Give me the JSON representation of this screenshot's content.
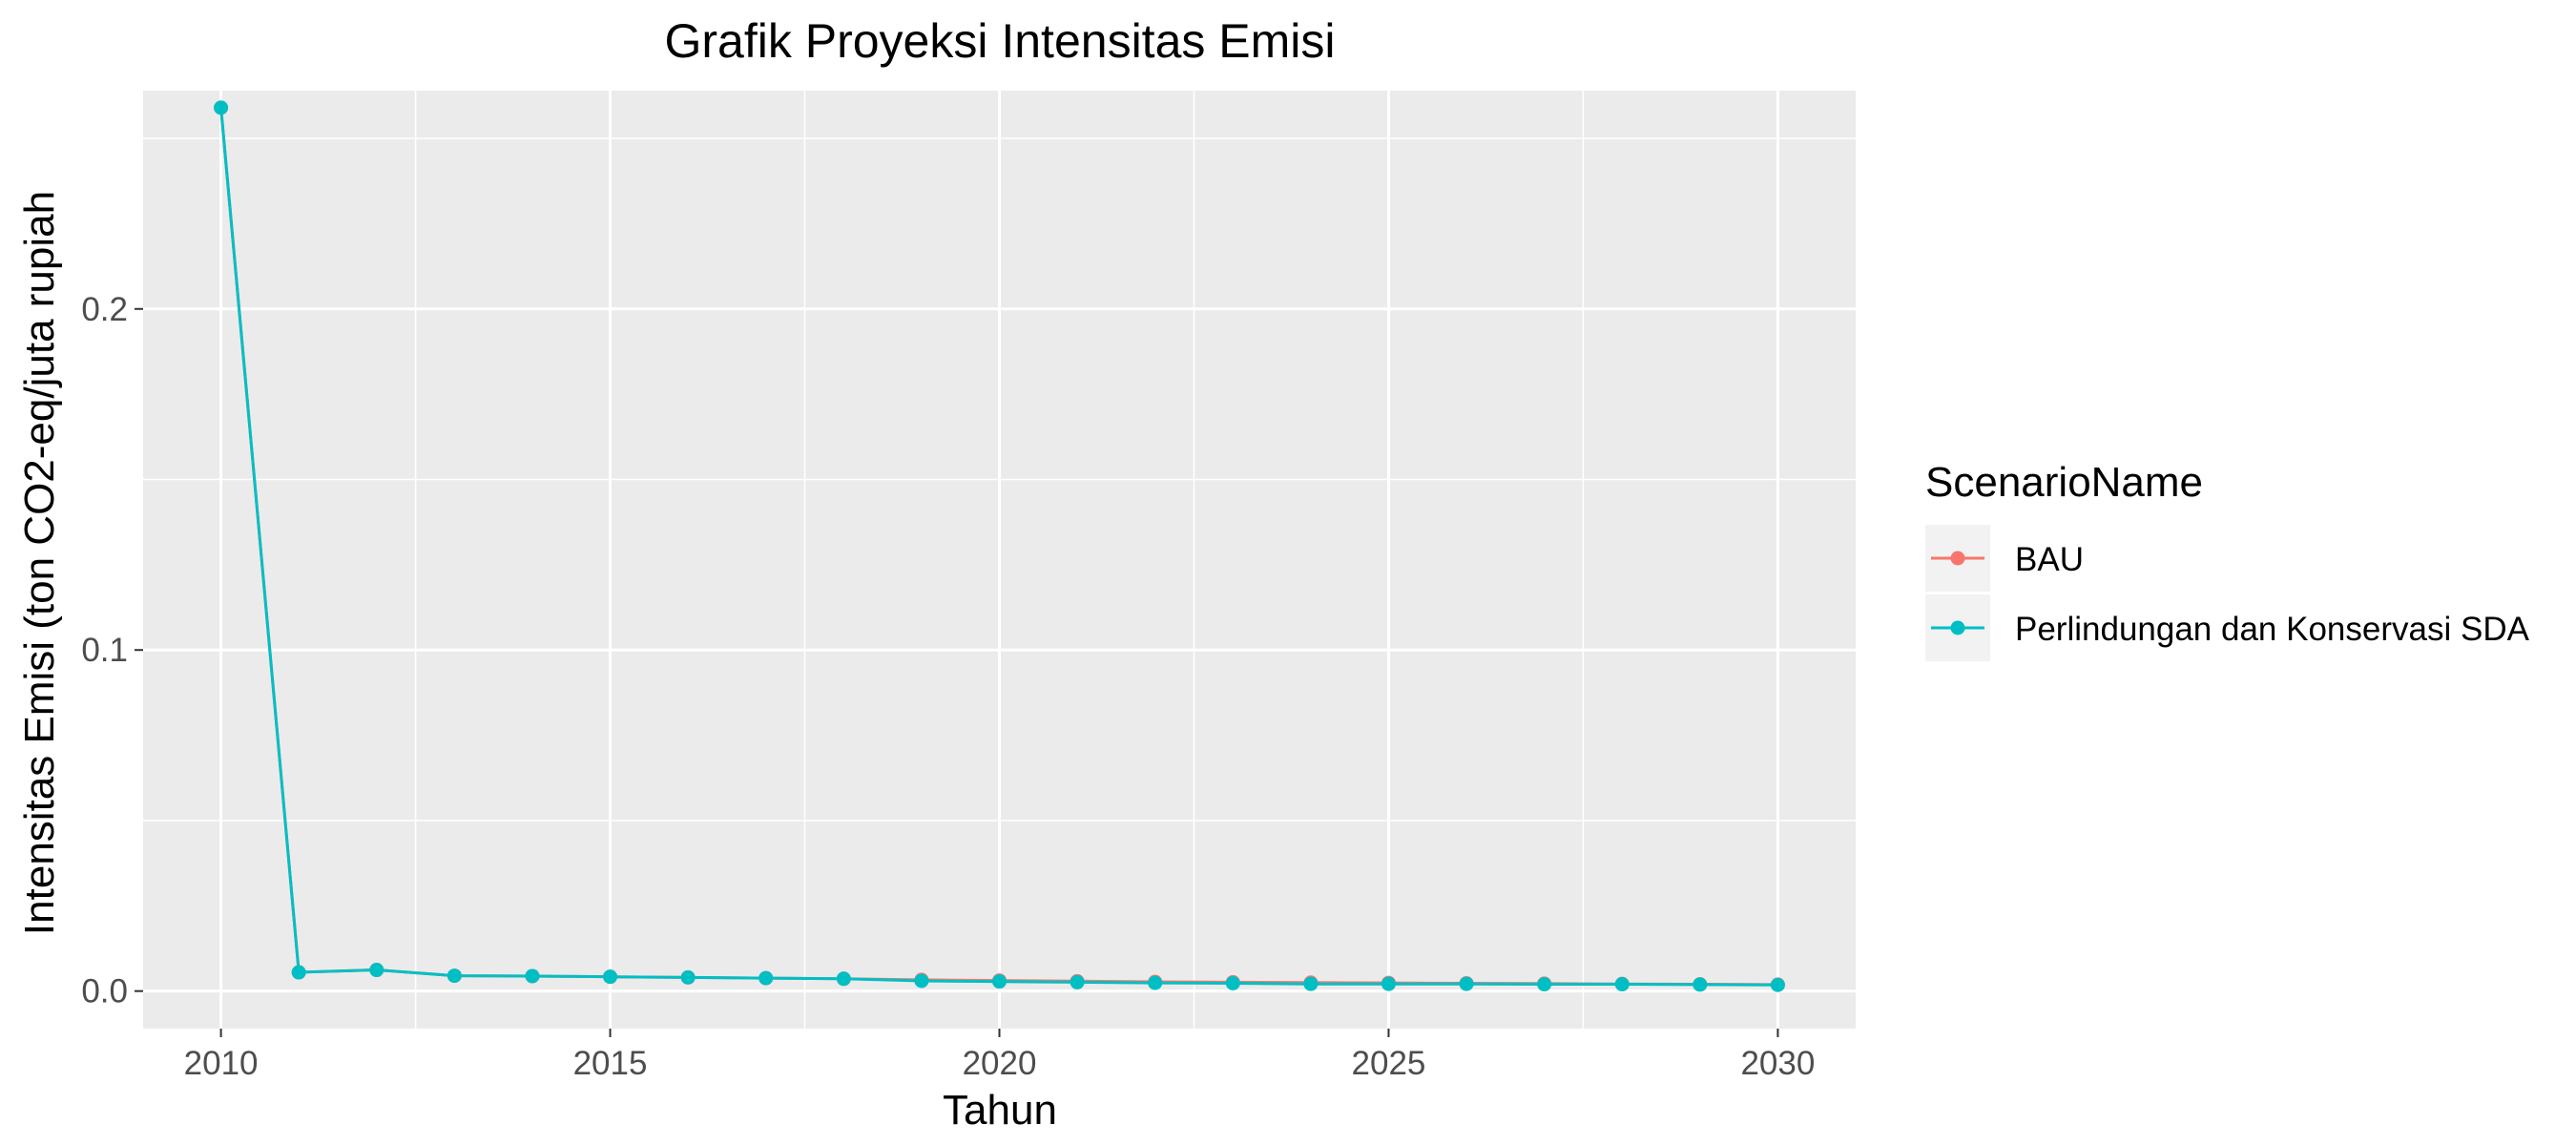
{
  "chart_data": {
    "type": "line",
    "title": "Grafik Proyeksi Intensitas Emisi",
    "xlabel": "Tahun",
    "ylabel": "Intensitas Emisi (ton CO2-eq/juta rupiah",
    "xlim": [
      2009,
      2031
    ],
    "ylim": [
      -0.011,
      0.264
    ],
    "x_ticks": [
      2010,
      2015,
      2020,
      2025,
      2030
    ],
    "x_tick_labels": [
      "2010",
      "2015",
      "2020",
      "2025",
      "2030"
    ],
    "y_ticks": [
      0.0,
      0.1,
      0.2
    ],
    "y_tick_labels": [
      "0.0",
      "0.1",
      "0.2"
    ],
    "grid": true,
    "legend": {
      "title": "ScenarioName",
      "position": "right"
    },
    "x": [
      2010,
      2011,
      2012,
      2013,
      2014,
      2015,
      2016,
      2017,
      2018,
      2019,
      2020,
      2021,
      2022,
      2023,
      2024,
      2025,
      2026,
      2027,
      2028,
      2029,
      2030
    ],
    "series": [
      {
        "name": "BAU",
        "color": "#F8766D",
        "values": [
          0.259,
          0.0055,
          0.0062,
          0.0045,
          0.0044,
          0.0042,
          0.004,
          0.0038,
          0.0036,
          0.0033,
          0.0031,
          0.0029,
          0.0027,
          0.0026,
          0.0025,
          0.0024,
          0.0023,
          0.0022,
          0.0021,
          0.002,
          0.0019
        ]
      },
      {
        "name": "Perlindungan dan Konservasi SDA",
        "color": "#00BFC4",
        "values": [
          0.259,
          0.0055,
          0.0062,
          0.0045,
          0.0044,
          0.0042,
          0.004,
          0.0038,
          0.0036,
          0.003,
          0.0028,
          0.0026,
          0.0024,
          0.0023,
          0.0021,
          0.0021,
          0.0021,
          0.002,
          0.002,
          0.0019,
          0.0018
        ]
      }
    ]
  }
}
